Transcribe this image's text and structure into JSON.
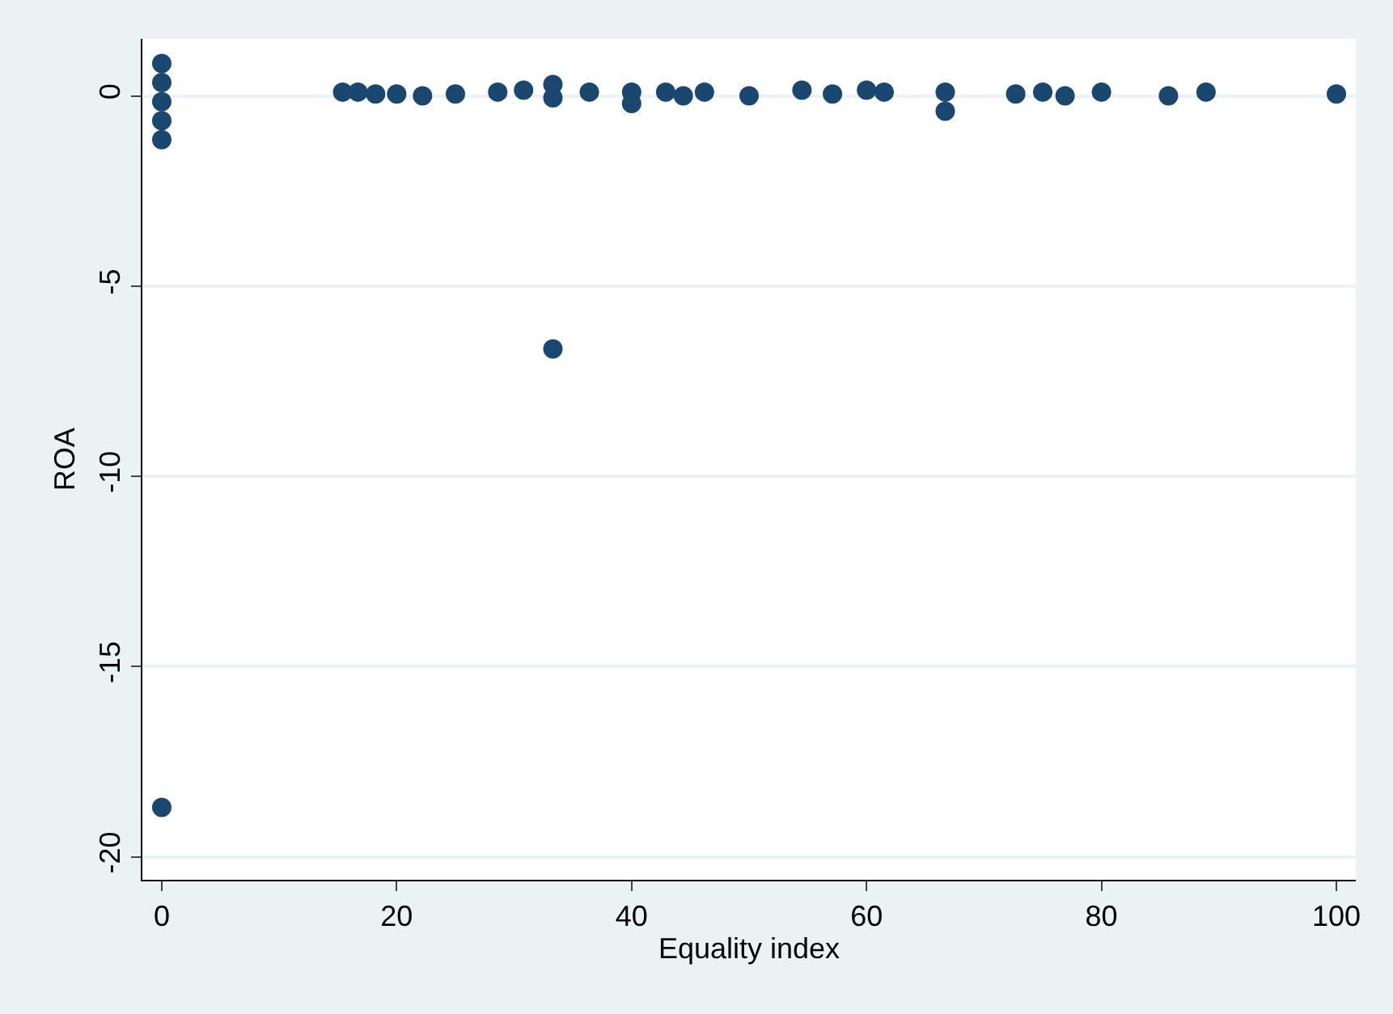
{
  "chart_data": {
    "type": "scatter",
    "xlabel": "Equality index",
    "ylabel": "ROA",
    "x": [
      0,
      0,
      0,
      0,
      0,
      0,
      15.4,
      16.7,
      18.2,
      20,
      22.2,
      25,
      28.6,
      30.8,
      33.3,
      33.3,
      33.3,
      36.4,
      40,
      40,
      42.9,
      44.4,
      46.2,
      50,
      54.5,
      57.1,
      60,
      61.5,
      66.7,
      66.7,
      72.7,
      75,
      76.9,
      80,
      85.7,
      88.9,
      100
    ],
    "values": [
      0.85,
      0.35,
      -0.15,
      -0.65,
      -1.15,
      -18.7,
      0.1,
      0.1,
      0.05,
      0.05,
      0,
      0.05,
      0.1,
      0.15,
      0.3,
      -0.05,
      -6.65,
      0.1,
      0.1,
      -0.2,
      0.1,
      0,
      0.1,
      0,
      0.15,
      0.05,
      0.15,
      0.1,
      0.1,
      -0.4,
      0.05,
      0.1,
      0,
      0.1,
      0,
      0.1,
      0.05
    ],
    "color": "#1a476f",
    "marker": "circle",
    "xlim": [
      -1.65,
      101.65
    ],
    "ylim": [
      -20.6,
      1.5
    ],
    "xticks": [
      0,
      20,
      40,
      60,
      80,
      100
    ],
    "yticks": [
      -20,
      -15,
      -10,
      -5,
      0
    ],
    "grid": "y"
  }
}
